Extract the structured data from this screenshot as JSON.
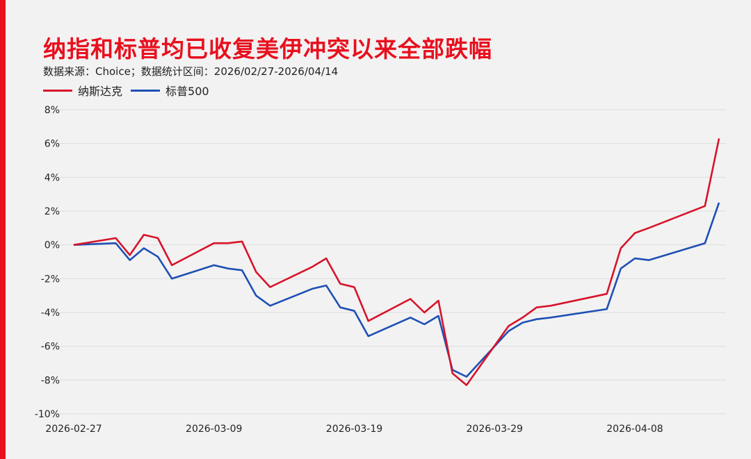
{
  "title": "纳指和标普均已收复美伊冲突以来全部跌幅",
  "subtitle": "数据来源：Choice；数据统计区间：2026/02/27-2026/04/14",
  "colors": {
    "accent": "#e8101e",
    "nasdaq": "#d7132a",
    "sp500": "#1e4fb4",
    "grid": "#dcdcdc"
  },
  "chart_data": {
    "type": "line",
    "title": "纳指和标普均已收复美伊冲突以来全部跌幅",
    "xlabel": "",
    "ylabel": "",
    "ylim": [
      -10,
      8
    ],
    "y_ticks": [
      "8%",
      "6%",
      "4%",
      "2%",
      "0%",
      "-2%",
      "-4%",
      "-6%",
      "-8%",
      "-10%"
    ],
    "x_tick_labels": [
      "2026-02-27",
      "2026-03-09",
      "2026-03-19",
      "2026-03-29",
      "2026-04-08"
    ],
    "x": [
      "2026-02-27",
      "2026-03-02",
      "2026-03-03",
      "2026-03-04",
      "2026-03-05",
      "2026-03-06",
      "2026-03-09",
      "2026-03-10",
      "2026-03-11",
      "2026-03-12",
      "2026-03-13",
      "2026-03-16",
      "2026-03-17",
      "2026-03-18",
      "2026-03-19",
      "2026-03-20",
      "2026-03-23",
      "2026-03-24",
      "2026-03-25",
      "2026-03-26",
      "2026-03-27",
      "2026-03-30",
      "2026-03-31",
      "2026-04-01",
      "2026-04-02",
      "2026-04-06",
      "2026-04-07",
      "2026-04-08",
      "2026-04-09",
      "2026-04-13",
      "2026-04-14"
    ],
    "grid": true,
    "legend_position": "top-left",
    "series": [
      {
        "name": "纳斯达克",
        "values": [
          0.0,
          0.4,
          -0.6,
          0.6,
          0.4,
          -1.2,
          0.1,
          0.1,
          0.2,
          -1.6,
          -2.5,
          -1.3,
          -0.8,
          -2.3,
          -2.5,
          -4.5,
          -3.2,
          -4.0,
          -3.3,
          -7.6,
          -8.3,
          -4.8,
          -4.3,
          -3.7,
          -3.6,
          -2.9,
          -0.2,
          0.7,
          1.0,
          2.3,
          6.3
        ]
      },
      {
        "name": "标普500",
        "values": [
          0.0,
          0.1,
          -0.9,
          -0.2,
          -0.7,
          -2.0,
          -1.2,
          -1.4,
          -1.5,
          -3.0,
          -3.6,
          -2.6,
          -2.4,
          -3.7,
          -3.9,
          -5.4,
          -4.3,
          -4.7,
          -4.2,
          -7.4,
          -7.8,
          -5.1,
          -4.6,
          -4.4,
          -4.3,
          -3.8,
          -1.4,
          -0.8,
          -0.9,
          0.1,
          2.5
        ]
      }
    ]
  }
}
